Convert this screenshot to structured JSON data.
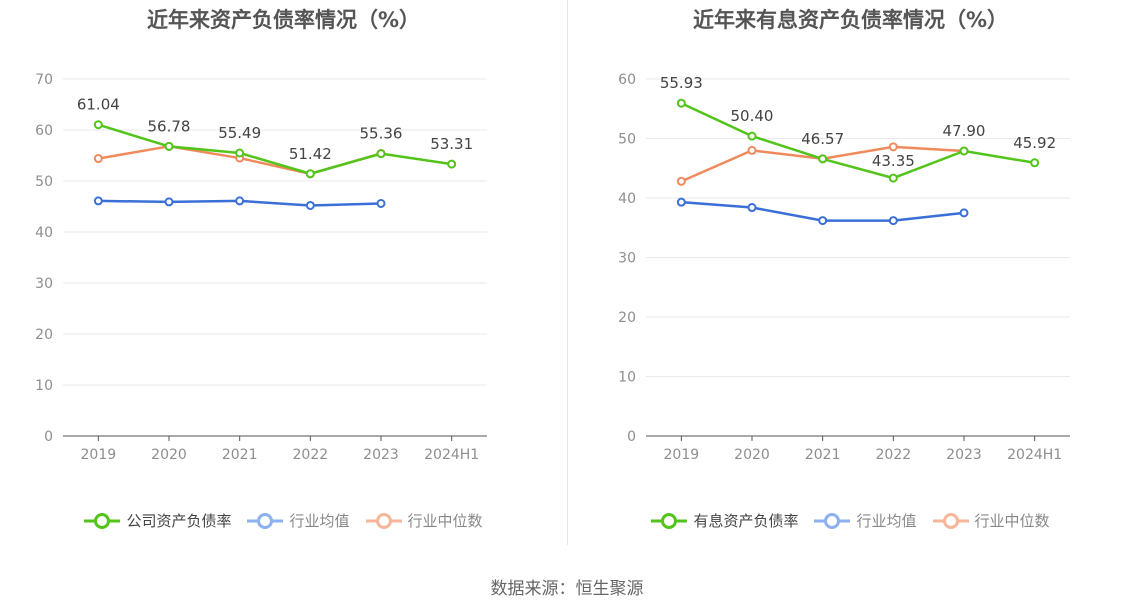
{
  "source": "数据来源：恒生聚源",
  "chart_data": [
    {
      "type": "line",
      "title": "近年来资产负债率情况（%）",
      "categories": [
        "2019",
        "2020",
        "2021",
        "2022",
        "2023",
        "2024H1"
      ],
      "ylim": [
        0,
        70
      ],
      "yticks": [
        "0",
        "10",
        "20",
        "30",
        "40",
        "50",
        "60",
        "70"
      ],
      "grid": true,
      "legend_position": "bottom",
      "series": [
        {
          "name": "公司资产负债率",
          "color": "#52c41a",
          "values": [
            61.04,
            56.78,
            55.49,
            51.42,
            55.36,
            53.31
          ],
          "labels": [
            "61.04",
            "56.78",
            "55.49",
            "51.42",
            "55.36",
            "53.31"
          ]
        },
        {
          "name": "行业均值",
          "color": "#3a6fd8",
          "legend_color": "#8cb0f0",
          "values": [
            46.1,
            45.9,
            46.1,
            45.2,
            45.6,
            null
          ]
        },
        {
          "name": "行业中位数",
          "color": "#f08a5d",
          "legend_color": "#f7b59a",
          "values": [
            54.4,
            56.8,
            54.5,
            51.4,
            55.4,
            null
          ]
        }
      ]
    },
    {
      "type": "line",
      "title": "近年来有息资产负债率情况（%）",
      "categories": [
        "2019",
        "2020",
        "2021",
        "2022",
        "2023",
        "2024H1"
      ],
      "ylim": [
        0,
        60
      ],
      "yticks": [
        "0",
        "10",
        "20",
        "30",
        "40",
        "50",
        "60"
      ],
      "grid": true,
      "legend_position": "bottom",
      "series": [
        {
          "name": "有息资产负债率",
          "color": "#52c41a",
          "values": [
            55.93,
            50.4,
            46.57,
            43.35,
            47.9,
            45.92
          ],
          "labels": [
            "55.93",
            "50.40",
            "46.57",
            "43.35",
            "47.90",
            "45.92"
          ]
        },
        {
          "name": "行业均值",
          "color": "#3a6fd8",
          "legend_color": "#8cb0f0",
          "values": [
            39.3,
            38.4,
            36.2,
            36.2,
            37.5,
            null
          ]
        },
        {
          "name": "行业中位数",
          "color": "#f08a5d",
          "legend_color": "#f7b59a",
          "values": [
            42.8,
            48.0,
            46.6,
            48.6,
            47.9,
            null
          ]
        }
      ]
    }
  ]
}
